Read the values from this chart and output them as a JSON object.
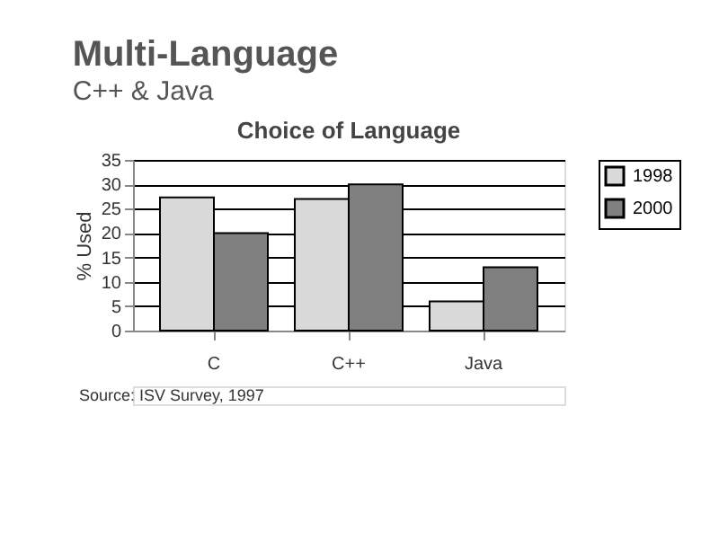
{
  "chart_data": {
    "type": "bar",
    "title": "Multi-Language",
    "subtitle": "C++ & Java",
    "annotations": [
      "Choice of Language",
      "Source: ISV Survey, 1997"
    ],
    "ylabel": "% Used",
    "categories": [
      "C",
      "C++",
      "Java"
    ],
    "series": [
      {
        "name": "1998",
        "color": "#d9d9d9",
        "values": [
          27.3,
          27,
          6
        ]
      },
      {
        "name": "2000",
        "color": "#808080",
        "values": [
          20,
          30,
          13
        ]
      }
    ],
    "ylim": [
      0,
      35
    ],
    "yticks": [
      0,
      5,
      10,
      15,
      20,
      25,
      30,
      35
    ],
    "grid": "y",
    "legend": "right"
  }
}
